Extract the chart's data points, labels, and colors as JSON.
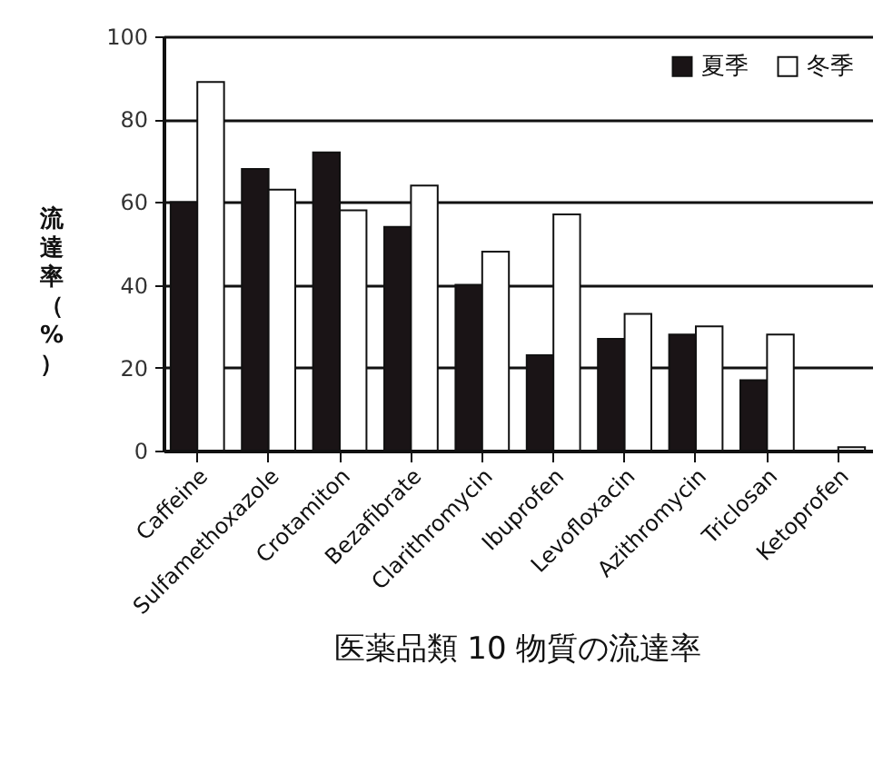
{
  "chart_data": {
    "type": "bar",
    "title": "医薬品類 10 物質の流達率",
    "ylabel": "流達率（%）",
    "categories": [
      "Caffeine",
      "Sulfamethoxazole",
      "Crotamiton",
      "Bezafibrate",
      "Clarithromycin",
      "Ibuprofen",
      "Levofloxacin",
      "Azithromycin",
      "Triclosan",
      "Ketoprofen"
    ],
    "series": [
      {
        "name": "夏季",
        "color": "#1a1416",
        "values": [
          60,
          68,
          72,
          54,
          40,
          23,
          27,
          28,
          17,
          null
        ]
      },
      {
        "name": "冬季",
        "color": "#ffffff",
        "values": [
          89,
          63,
          58,
          64,
          48,
          57,
          33,
          30,
          28,
          0.8
        ]
      }
    ],
    "ylim": [
      0,
      100
    ],
    "yticks": [
      0,
      20,
      40,
      60,
      80,
      100
    ],
    "grid": "y",
    "legend": "top right"
  }
}
